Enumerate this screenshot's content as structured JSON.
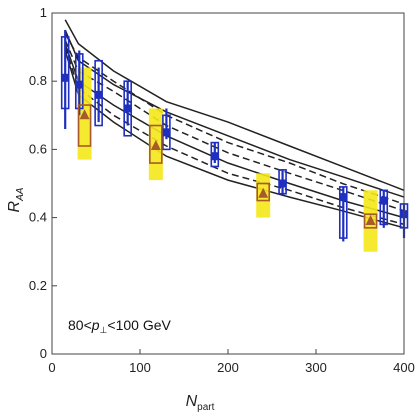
{
  "chart_data": {
    "type": "scatter",
    "title": "",
    "xlabel": {
      "main": "N",
      "sub": "part"
    },
    "ylabel": {
      "main": "R",
      "sub": "AA"
    },
    "annotation": {
      "prefix": "80<",
      "var": "p",
      "sub": "⊥",
      "suffix": "<100 GeV"
    },
    "xlim": [
      0,
      400
    ],
    "ylim": [
      0,
      1
    ],
    "xticks": [
      0,
      100,
      200,
      300,
      400
    ],
    "yticks": [
      0,
      0.2,
      0.4,
      0.6,
      0.8,
      1
    ],
    "ytick_labels": [
      "0",
      "0.2",
      "0.4",
      "0.6",
      "0.8",
      "1"
    ],
    "grid": false,
    "series": [
      {
        "marker": "square",
        "color": "#1f2fbf",
        "points": [
          {
            "x": 15,
            "y": 0.81,
            "err_lo": 0.66,
            "err_hi": 0.95,
            "sys_lo": 0.72,
            "sys_hi": 0.93
          },
          {
            "x": 31,
            "y": 0.79,
            "err_lo": 0.7,
            "err_hi": 0.89,
            "sys_lo": 0.72,
            "sys_hi": 0.88
          },
          {
            "x": 53,
            "y": 0.76,
            "err_lo": 0.68,
            "err_hi": 0.84,
            "sys_lo": 0.67,
            "sys_hi": 0.86
          },
          {
            "x": 86,
            "y": 0.72,
            "err_lo": 0.67,
            "err_hi": 0.8,
            "sys_lo": 0.64,
            "sys_hi": 0.8
          },
          {
            "x": 130,
            "y": 0.65,
            "err_lo": 0.63,
            "err_hi": 0.72,
            "sys_lo": 0.6,
            "sys_hi": 0.7
          },
          {
            "x": 185,
            "y": 0.58,
            "err_lo": 0.56,
            "err_hi": 0.62,
            "sys_lo": 0.55,
            "sys_hi": 0.62
          },
          {
            "x": 262,
            "y": 0.5,
            "err_lo": 0.47,
            "err_hi": 0.54,
            "sys_lo": 0.47,
            "sys_hi": 0.54
          },
          {
            "x": 331,
            "y": 0.46,
            "err_lo": 0.33,
            "err_hi": 0.49,
            "sys_lo": 0.34,
            "sys_hi": 0.49
          },
          {
            "x": 377,
            "y": 0.45,
            "err_lo": 0.37,
            "err_hi": 0.48,
            "sys_lo": 0.38,
            "sys_hi": 0.48
          },
          {
            "x": 400,
            "y": 0.41,
            "err_lo": 0.34,
            "err_hi": 0.44,
            "sys_lo": 0.37,
            "sys_hi": 0.44
          }
        ]
      },
      {
        "marker": "triangle",
        "color": "#a85a2a",
        "band_color": "#f5e81a",
        "points": [
          {
            "x": 37,
            "y": 0.7,
            "sys_lo": 0.61,
            "sys_hi": 0.73,
            "band_lo": 0.57,
            "band_hi": 0.84
          },
          {
            "x": 118,
            "y": 0.61,
            "sys_lo": 0.56,
            "sys_hi": 0.67,
            "band_lo": 0.51,
            "band_hi": 0.72
          },
          {
            "x": 240,
            "y": 0.47,
            "sys_lo": 0.45,
            "sys_hi": 0.5,
            "band_lo": 0.4,
            "band_hi": 0.53
          },
          {
            "x": 362,
            "y": 0.39,
            "sys_lo": 0.37,
            "sys_hi": 0.41,
            "band_lo": 0.3,
            "band_hi": 0.48
          }
        ]
      }
    ],
    "curves": [
      {
        "style": "solid",
        "x": [
          15,
          30,
          70,
          130,
          200,
          270,
          330,
          400
        ],
        "y": [
          0.98,
          0.91,
          0.83,
          0.74,
          0.68,
          0.61,
          0.55,
          0.48
        ]
      },
      {
        "style": "solid",
        "x": [
          15,
          30,
          70,
          130,
          200,
          270,
          330,
          400
        ],
        "y": [
          0.95,
          0.86,
          0.79,
          0.71,
          0.64,
          0.57,
          0.52,
          0.46
        ]
      },
      {
        "style": "dashed",
        "x": [
          15,
          30,
          70,
          130,
          200,
          270,
          330,
          400
        ],
        "y": [
          0.94,
          0.87,
          0.8,
          0.7,
          0.62,
          0.56,
          0.5,
          0.44
        ]
      },
      {
        "style": "dashed",
        "x": [
          15,
          30,
          70,
          130,
          200,
          270,
          330,
          400
        ],
        "y": [
          0.92,
          0.83,
          0.77,
          0.67,
          0.59,
          0.53,
          0.48,
          0.42
        ]
      },
      {
        "style": "solid",
        "x": [
          15,
          30,
          70,
          130,
          200,
          270,
          330,
          400
        ],
        "y": [
          0.91,
          0.8,
          0.73,
          0.64,
          0.56,
          0.5,
          0.45,
          0.4
        ]
      },
      {
        "style": "dashed",
        "x": [
          15,
          30,
          70,
          130,
          200,
          270,
          330,
          400
        ],
        "y": [
          0.9,
          0.78,
          0.7,
          0.61,
          0.53,
          0.48,
          0.43,
          0.38
        ]
      },
      {
        "style": "solid",
        "x": [
          15,
          30,
          70,
          130,
          200,
          270,
          330,
          400
        ],
        "y": [
          0.89,
          0.76,
          0.68,
          0.58,
          0.51,
          0.46,
          0.42,
          0.37
        ]
      }
    ]
  }
}
